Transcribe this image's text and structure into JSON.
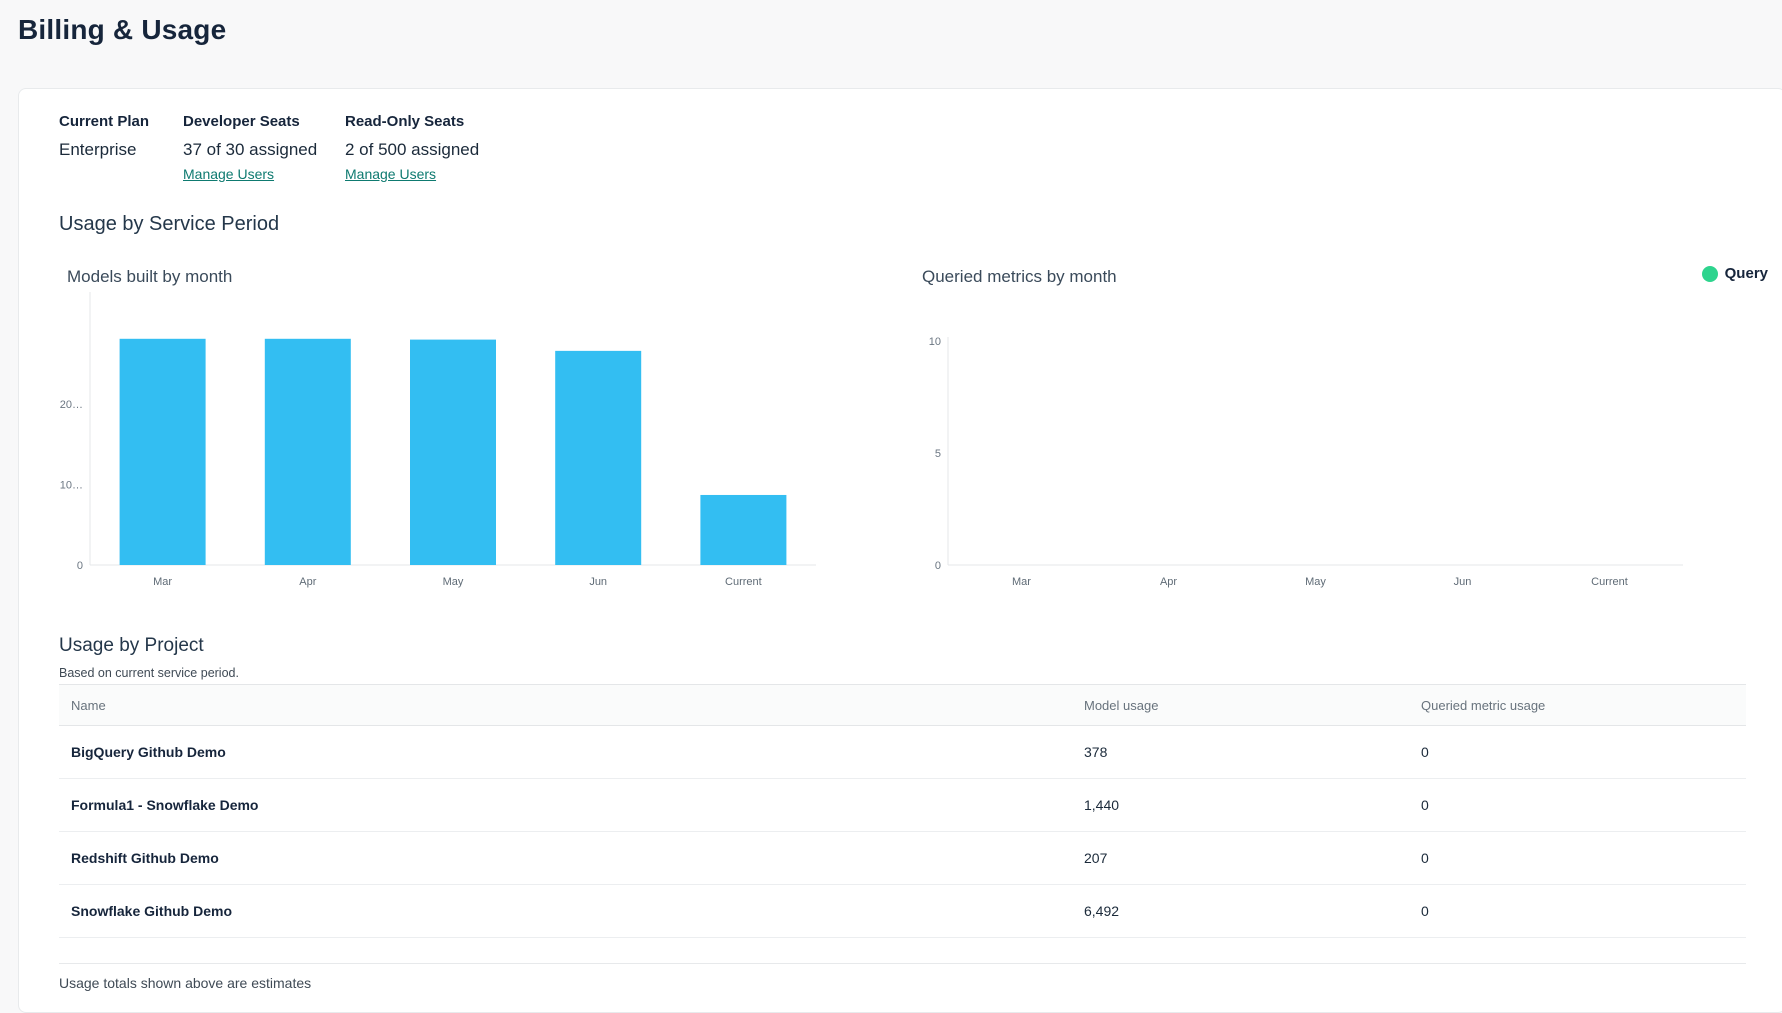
{
  "page": {
    "title": "Billing & Usage"
  },
  "plan": {
    "current_plan_label": "Current Plan",
    "current_plan_value": "Enterprise",
    "developer_seats_label": "Developer Seats",
    "developer_seats_value": "37 of 30 assigned",
    "readonly_seats_label": "Read-Only Seats",
    "readonly_seats_value": "2 of 500 assigned",
    "manage_users_label": "Manage Users"
  },
  "usage_section": {
    "title": "Usage by Service Period"
  },
  "chart_data": [
    {
      "type": "bar",
      "title": "Models built by month",
      "categories": [
        "Mar",
        "Apr",
        "May",
        "Jun",
        "Current"
      ],
      "values": [
        28100,
        28100,
        28000,
        26600,
        8700
      ],
      "ylim": [
        0,
        28500
      ],
      "ytick_values": [
        0,
        10000,
        20000
      ],
      "ytick_labels": [
        "0",
        "10…",
        "20…"
      ],
      "bar_color": "#33bef2",
      "grid": false,
      "xlabel": "",
      "ylabel": ""
    },
    {
      "type": "bar",
      "title": "Queried metrics by month",
      "categories": [
        "Mar",
        "Apr",
        "May",
        "Jun",
        "Current"
      ],
      "series": [
        {
          "name": "Query",
          "values": [
            0,
            0,
            0,
            0,
            0
          ]
        }
      ],
      "ylim": [
        0,
        10
      ],
      "ytick_values": [
        0,
        5,
        10
      ],
      "ytick_labels": [
        "0",
        "5",
        "10"
      ],
      "legend": {
        "label": "Query",
        "color": "#2ed48e",
        "position": "top-right"
      },
      "grid": false,
      "xlabel": "",
      "ylabel": ""
    }
  ],
  "project_section": {
    "title": "Usage by Project",
    "subtitle": "Based on current service period.",
    "table": {
      "columns": [
        "Name",
        "Model usage",
        "Queried metric usage"
      ],
      "rows": [
        {
          "name": "BigQuery Github Demo",
          "model_usage": "378",
          "queried_metric_usage": "0"
        },
        {
          "name": "Formula1 - Snowflake Demo",
          "model_usage": "1,440",
          "queried_metric_usage": "0"
        },
        {
          "name": "Redshift Github Demo",
          "model_usage": "207",
          "queried_metric_usage": "0"
        },
        {
          "name": "Snowflake Github Demo",
          "model_usage": "6,492",
          "queried_metric_usage": "0"
        }
      ]
    },
    "footnote": "Usage totals shown above are estimates"
  },
  "colors": {
    "bar_blue": "#33bef2",
    "legend_green": "#2ed48e",
    "link_teal": "#0e7a70",
    "heading_navy": "#16253b"
  }
}
